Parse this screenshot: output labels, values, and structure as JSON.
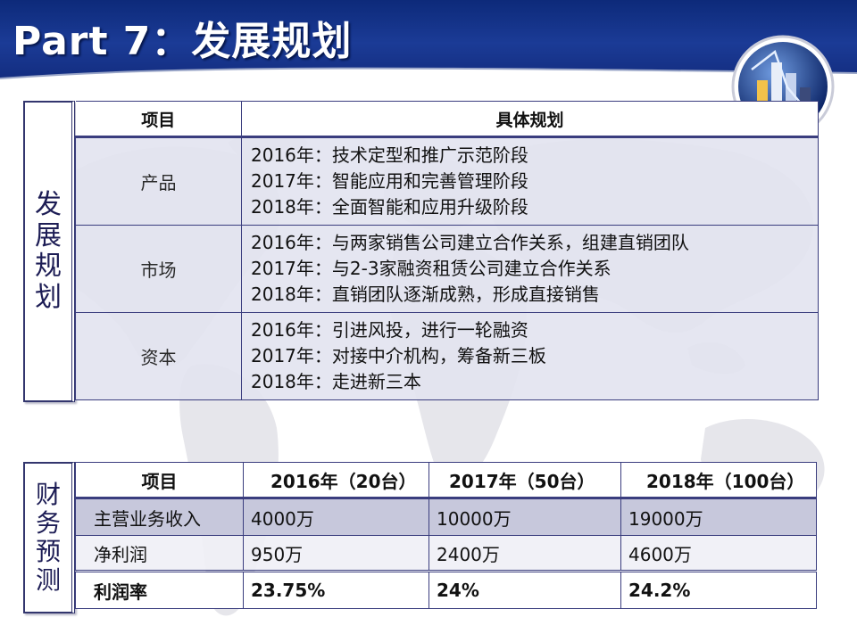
{
  "title": "Part 7：发展规划",
  "plan": {
    "side_label": [
      "发",
      "展",
      "规",
      "划"
    ],
    "header": {
      "col1": "项目",
      "col2": "具体规划"
    },
    "rows": [
      {
        "item": "产品",
        "lines": [
          "2016年：技术定型和推广示范阶段",
          "2017年：智能应用和完善管理阶段",
          "2018年：全面智能和应用升级阶段"
        ]
      },
      {
        "item": "市场",
        "lines": [
          "2016年：与两家销售公司建立合作关系，组建直销团队",
          "2017年：与2-3家融资租赁公司建立合作关系",
          "2018年：直销团队逐渐成熟，形成直接销售"
        ]
      },
      {
        "item": "资本",
        "lines": [
          "2016年：引进风投，进行一轮融资",
          "2017年：对接中介机构，筹备新三板",
          "2018年：走进新三本"
        ]
      }
    ]
  },
  "finance": {
    "side_label": [
      "财",
      "务",
      "预",
      "测"
    ],
    "header": [
      "项目",
      "2016年（20台）",
      "2017年（50台）",
      "2018年（100台）"
    ],
    "rows": [
      [
        "主营业务收入",
        "4000万",
        "10000万",
        "19000万"
      ],
      [
        "净利润",
        "950万",
        "2400万",
        "4600万"
      ],
      [
        "利润率",
        "23.75%",
        "24%",
        "24.2%"
      ]
    ]
  },
  "colors": {
    "header_blue": "#1b3b96",
    "table_border": "#3a3d7e",
    "row_tint": "#e2e3f0",
    "highlight_row": "#c7c8dc"
  },
  "icons": {
    "logo": "bar-chart-globe-icon"
  }
}
